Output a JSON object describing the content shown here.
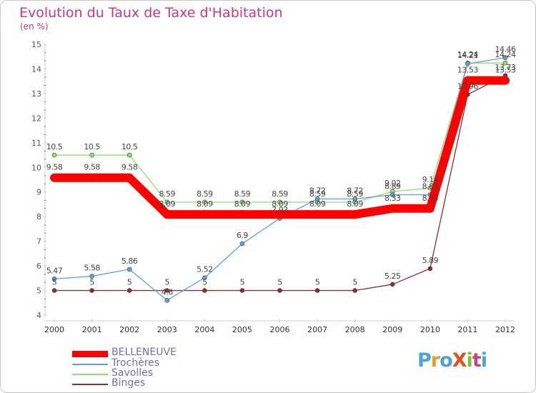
{
  "chart_data": {
    "type": "line",
    "title": "Evolution du Taux de Taxe d'Habitation",
    "unit_label": "(en %)",
    "x": [
      "2000",
      "2001",
      "2002",
      "2003",
      "2004",
      "2005",
      "2006",
      "2007",
      "2008",
      "2009",
      "2010",
      "2011",
      "2012"
    ],
    "ylim": [
      4,
      15
    ],
    "yticks": [
      4,
      5,
      6,
      7,
      8,
      9,
      10,
      11,
      12,
      13,
      14,
      15
    ],
    "grid": false,
    "legend_position": "bottom-left",
    "series": [
      {
        "name": "BELLENEUVE",
        "color": "#ff0000",
        "values": [
          9.58,
          9.58,
          9.58,
          8.09,
          8.09,
          8.09,
          8.09,
          8.09,
          8.09,
          8.33,
          8.33,
          13.53,
          13.53
        ],
        "labels": [
          "9.58",
          "9.58",
          "9.58",
          "8.09",
          "8.09",
          "8.09",
          "8.09",
          "8.09",
          "8.09",
          "8.33",
          "8.33",
          "13.53",
          "13.53"
        ]
      },
      {
        "name": "Trochères",
        "color": "#5f9fd6",
        "values": [
          5.47,
          5.58,
          5.86,
          4.6,
          5.52,
          6.9,
          7.93,
          8.72,
          8.72,
          8.89,
          8.89,
          14.21,
          14.46
        ],
        "labels": [
          "5.47",
          "5.58",
          "5.86",
          "4.6",
          "5.52",
          "6.9",
          "7.93",
          "8.72",
          "8.72",
          "8.89",
          "8.89",
          "14.21",
          "14.46"
        ]
      },
      {
        "name": "Savolles",
        "color": "#8fe070",
        "values": [
          10.5,
          10.5,
          10.5,
          8.59,
          8.59,
          8.59,
          8.59,
          8.59,
          8.59,
          9.02,
          9.16,
          14.24,
          14.24
        ],
        "labels": [
          "10.5",
          "10.5",
          "10.5",
          "8.59",
          "8.59",
          "8.59",
          "8.59",
          "8.59",
          "8.59",
          "9.02",
          "9.16",
          "14.24",
          "14.24"
        ]
      },
      {
        "name": "Binges",
        "color": "#8a3030",
        "values": [
          5,
          5,
          5,
          5,
          5,
          5,
          5,
          5,
          5,
          5.25,
          5.89,
          12.96,
          13.73
        ],
        "labels": [
          "5",
          "5",
          "5",
          "5",
          "5",
          "5",
          "5",
          "5",
          "5",
          "5.25",
          "5.89",
          "12.96",
          "13.73"
        ]
      }
    ]
  },
  "branding": {
    "logo_text": "ProXiti",
    "logo_colors": [
      "#4aa3d8",
      "#e8a020",
      "#4aa3d8",
      "#e05020",
      "#7abf3a",
      "#d04080",
      "#4aa3d8"
    ]
  }
}
